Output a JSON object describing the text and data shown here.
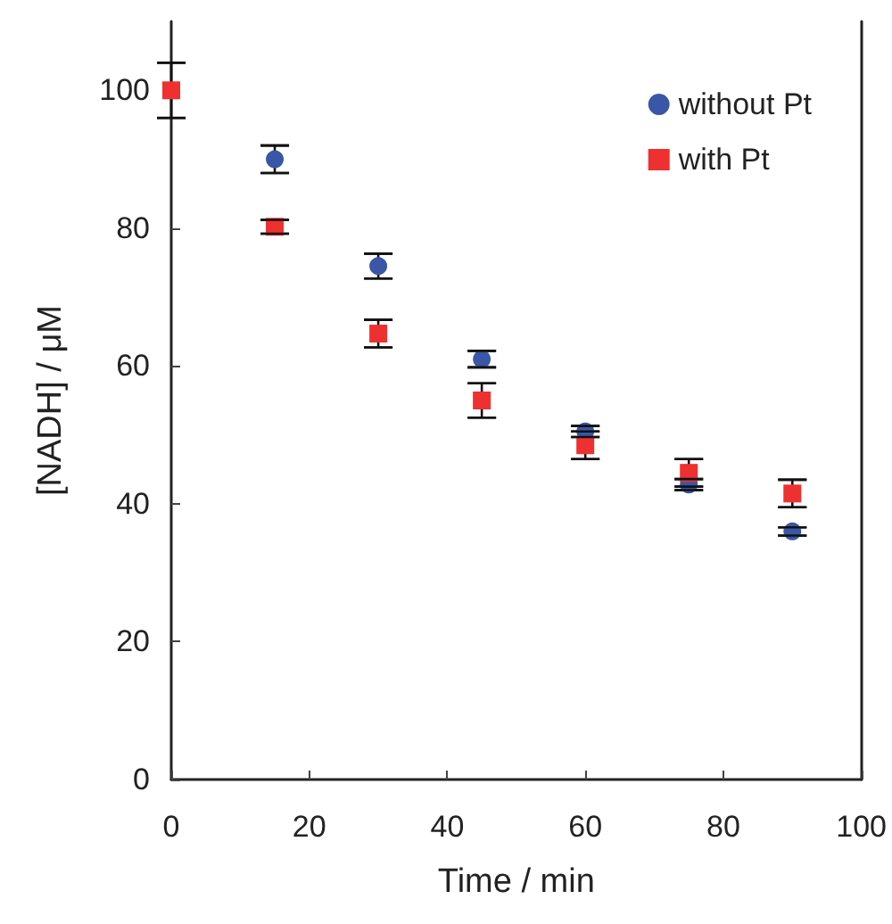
{
  "chart_data": {
    "type": "scatter",
    "xlabel": "Time / min",
    "ylabel": "[NADH] / μM",
    "x": [
      0,
      15,
      30,
      45,
      60,
      75,
      90
    ],
    "xlim": [
      0,
      100
    ],
    "xticks": [
      0,
      20,
      40,
      60,
      80,
      100
    ],
    "ylim": [
      0,
      110
    ],
    "yticks": [
      0,
      20,
      40,
      60,
      80,
      100
    ],
    "grid": false,
    "legend": "top right",
    "series": [
      {
        "name": "without Pt",
        "color": "#3a56a6",
        "marker": "circle",
        "values": [
          null,
          90,
          74.5,
          61,
          50.5,
          42.8,
          36
        ],
        "errors": [
          null,
          2,
          1.8,
          1.2,
          0.8,
          0.8,
          0.6
        ]
      },
      {
        "name": "with Pt",
        "color": "#ee3030",
        "marker": "square",
        "values": [
          100,
          80.2,
          64.7,
          55,
          48.5,
          44.5,
          41.5
        ],
        "errors": [
          4,
          1,
          2,
          2.5,
          2,
          2,
          2
        ]
      }
    ]
  }
}
